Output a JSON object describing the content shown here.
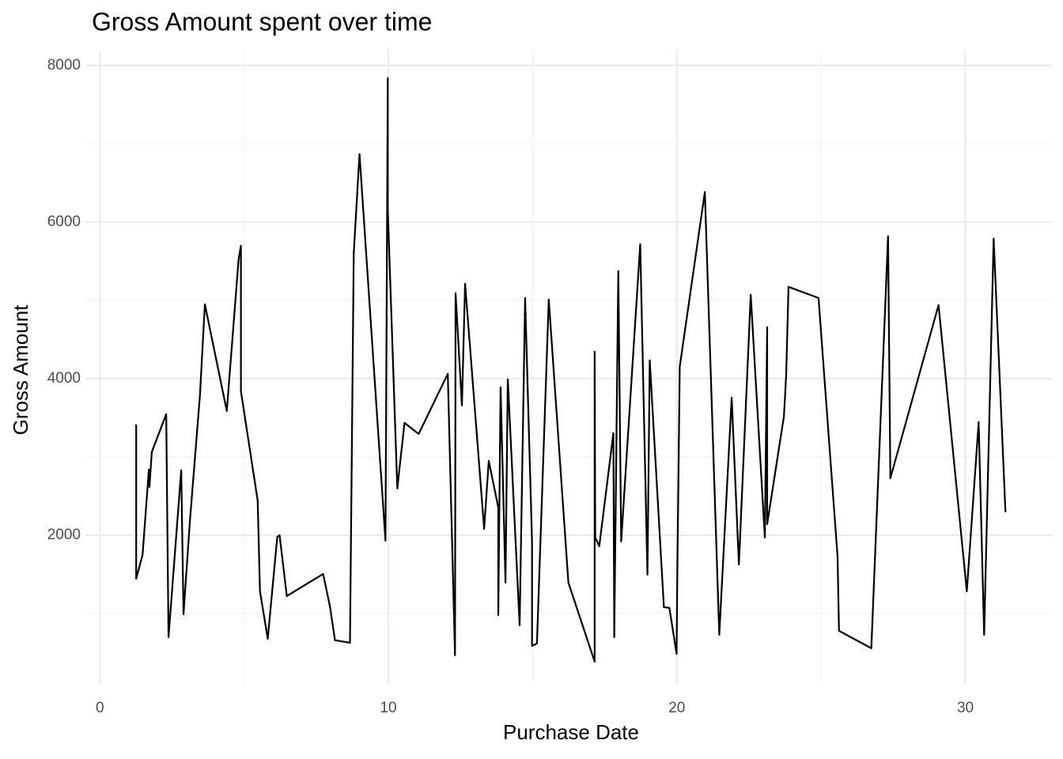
{
  "chart_data": {
    "type": "line",
    "title": "Gross Amount spent over time",
    "x_label": "Purchase Date",
    "y_label": "Gross Amount",
    "x": [
      1.26,
      1.26,
      1.48,
      1.7,
      1.72,
      1.8,
      2.3,
      2.38,
      2.82,
      2.9,
      3.12,
      3.47,
      3.64,
      4.4,
      4.81,
      4.89,
      4.89,
      5.47,
      5.55,
      5.82,
      6.15,
      6.23,
      6.48,
      7.74,
      7.98,
      8.15,
      8.67,
      8.8,
      9.0,
      9.9,
      9.98,
      9.98,
      10.31,
      10.56,
      11.05,
      12.06,
      12.31,
      12.33,
      12.55,
      12.66,
      13.32,
      13.48,
      13.81,
      13.81,
      13.89,
      14.06,
      14.14,
      14.55,
      14.74,
      14.98,
      14.98,
      15.15,
      15.56,
      16.24,
      17.15,
      17.15,
      17.17,
      17.31,
      17.8,
      17.83,
      17.97,
      18.07,
      18.73,
      18.98,
      19.06,
      19.55,
      19.74,
      19.99,
      20.02,
      20.1,
      20.97,
      21.47,
      21.9,
      22.15,
      22.56,
      23.05,
      23.13,
      23.13,
      23.71,
      23.74,
      23.79,
      23.87,
      24.91,
      25.57,
      25.62,
      26.74,
      27.32,
      27.4,
      29.07,
      30.05,
      30.46,
      30.65,
      30.98,
      31.39
    ],
    "values": [
      3414,
      1444,
      1747,
      2838,
      2616,
      3061,
      3545,
      697,
      2828,
      990,
      2172,
      3788,
      4949,
      3586,
      5525,
      5697,
      3838,
      2444,
      1283,
      677,
      1980,
      2000,
      1222,
      1505,
      1081,
      657,
      626,
      5596,
      6869,
      1929,
      7838,
      6162,
      2596,
      3434,
      3293,
      4061,
      465,
      5091,
      3657,
      5212,
      2081,
      2949,
      2354,
      980,
      3889,
      1394,
      3990,
      848,
      5030,
      1919,
      586,
      616,
      5010,
      1394,
      384,
      4343,
      1970,
      1859,
      3303,
      697,
      5374,
      1919,
      5717,
      1495,
      4232,
      1081,
      1071,
      485,
      1657,
      4152,
      6384,
      727,
      3758,
      1626,
      5071,
      1970,
      4657,
      2141,
      3515,
      3707,
      4061,
      5172,
      5030,
      1727,
      778,
      556,
      5818,
      2727,
      4939,
      1283,
      3444,
      727,
      5788,
      2293
    ],
    "color": "#000000",
    "xlim": [
      -0.5,
      33.0
    ],
    "ylim": [
      100,
      8200
    ],
    "xticks": [
      0,
      10,
      20,
      30
    ],
    "yticks": [
      2000,
      4000,
      6000,
      8000
    ],
    "x_minor_ticks": [
      5,
      15,
      25
    ],
    "y_minor_ticks": [
      1000,
      3000,
      5000,
      7000
    ],
    "grid": true
  }
}
